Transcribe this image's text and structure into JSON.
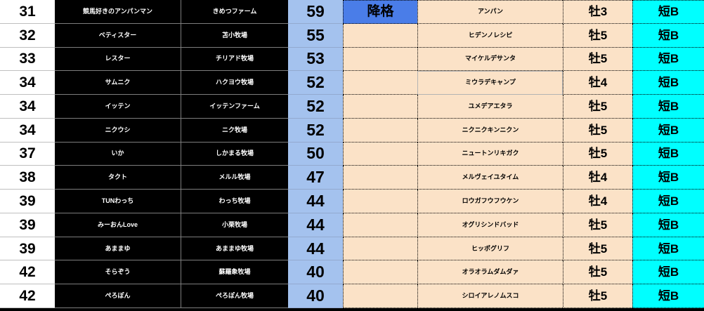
{
  "table": {
    "description": "horse-racing game owner ranking table",
    "rows": [
      {
        "rank": "31",
        "owner": "競馬好きのアンパンマン",
        "farm": "きめつファーム",
        "score": "59",
        "status": "降格",
        "horse": "アンパン",
        "sex_age": "牡3",
        "class": "短B"
      },
      {
        "rank": "32",
        "owner": "ベティスター",
        "farm": "苫小牧場",
        "score": "55",
        "status": "",
        "horse": "ヒデンノレシピ",
        "sex_age": "牡5",
        "class": "短B"
      },
      {
        "rank": "33",
        "owner": "レスター",
        "farm": "チリアド牧場",
        "score": "53",
        "status": "",
        "horse": "マイケルデサンタ",
        "sex_age": "牡5",
        "class": "短B"
      },
      {
        "rank": "34",
        "owner": "サムニク",
        "farm": "ハクヨウ牧場",
        "score": "52",
        "status": "",
        "horse": "ミウラデキャンプ",
        "sex_age": "牡4",
        "class": "短B"
      },
      {
        "rank": "34",
        "owner": "イッテン",
        "farm": "イッテンファーム",
        "score": "52",
        "status": "",
        "horse": "ユメデアエタラ",
        "sex_age": "牡5",
        "class": "短B"
      },
      {
        "rank": "34",
        "owner": "ニクウシ",
        "farm": "ニク牧場",
        "score": "52",
        "status": "",
        "horse": "ニクニクキンニクン",
        "sex_age": "牡5",
        "class": "短B"
      },
      {
        "rank": "37",
        "owner": "いか",
        "farm": "しかまる牧場",
        "score": "50",
        "status": "",
        "horse": "ニュートンリキガク",
        "sex_age": "牡5",
        "class": "短B"
      },
      {
        "rank": "38",
        "owner": "タクト",
        "farm": "メルル牧場",
        "score": "47",
        "status": "",
        "horse": "メルヴェイユタイム",
        "sex_age": "牡4",
        "class": "短B"
      },
      {
        "rank": "39",
        "owner": "TUNわっち",
        "farm": "わっち牧場",
        "score": "44",
        "status": "",
        "horse": "ロウガフウフウケン",
        "sex_age": "牡4",
        "class": "短B"
      },
      {
        "rank": "39",
        "owner": "みーおんLove",
        "farm": "小栗牧場",
        "score": "44",
        "status": "",
        "horse": "オグリシンドバッド",
        "sex_age": "牡5",
        "class": "短B"
      },
      {
        "rank": "39",
        "owner": "あままゆ",
        "farm": "あままゆ牧場",
        "score": "44",
        "status": "",
        "horse": "ヒッポグリフ",
        "sex_age": "牡5",
        "class": "短B"
      },
      {
        "rank": "42",
        "owner": "そらぞう",
        "farm": "蘇羅象牧場",
        "score": "40",
        "status": "",
        "horse": "オラオラムダムダァ",
        "sex_age": "牡5",
        "class": "短B"
      },
      {
        "rank": "42",
        "owner": "ぺろぽん",
        "farm": "ぺろぽん牧場",
        "score": "40",
        "status": "",
        "horse": "シロイアレノムスコ",
        "sex_age": "牡5",
        "class": "短B"
      }
    ]
  },
  "selected_cell": {
    "row_index": 3,
    "column": "horse"
  },
  "colors": {
    "demote_blue": "#4a7de8",
    "score_blue": "#a4c2ee",
    "card_peach": "#fbe2c7",
    "class_cyan": "#00ffff",
    "owner_black": "#000000"
  }
}
